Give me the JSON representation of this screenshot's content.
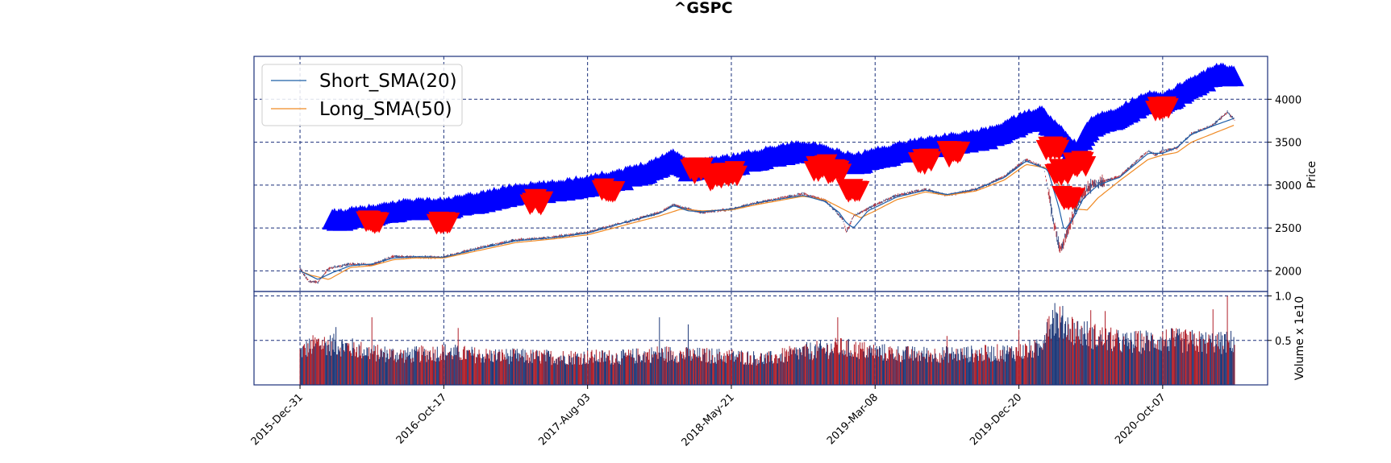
{
  "chart_data": {
    "type": "candlestick",
    "title": "^GSPC",
    "price_axis": {
      "label": "Price",
      "ticks": [
        2000,
        2500,
        3000,
        3500,
        4000
      ],
      "ylim": [
        1760,
        4500
      ]
    },
    "volume_axis": {
      "label": "Volume x 1e10",
      "ticks": [
        0.5,
        1.0
      ],
      "tick_labels": [
        "0.5",
        "1.0"
      ],
      "ylim": [
        0,
        1.05
      ]
    },
    "x_axis": {
      "tick_labels": [
        "2015-Dec-31",
        "2016-Oct-17",
        "2017-Aug-03",
        "2018-May-21",
        "2019-Mar-08",
        "2019-Dec-20",
        "2020-Oct-07"
      ],
      "tick_positions": [
        0,
        200,
        400,
        600,
        800,
        1000,
        1200
      ],
      "xlim": [
        -64,
        1346
      ]
    },
    "grid": true,
    "legend": {
      "position": "upper-left",
      "entries": [
        {
          "label": "Short_SMA(20)",
          "color": "#1f5fa8"
        },
        {
          "label": "Long_SMA(50)",
          "color": "#f08a24"
        }
      ]
    },
    "colors": {
      "axes_border": "#1a2f7a",
      "grid": "#1a2f7a",
      "candle_up": "#1f3a7a",
      "candle_down": "#b0202a",
      "buy_marker": "#0000ff",
      "sell_marker": "#ff0000",
      "short_sma": "#1f5fa8",
      "long_sma": "#f08a24"
    },
    "price_path": [
      [
        0,
        2030
      ],
      [
        12,
        1880
      ],
      [
        25,
        1870
      ],
      [
        40,
        2030
      ],
      [
        70,
        2080
      ],
      [
        100,
        2070
      ],
      [
        130,
        2170
      ],
      [
        160,
        2160
      ],
      [
        200,
        2160
      ],
      [
        250,
        2270
      ],
      [
        300,
        2360
      ],
      [
        350,
        2390
      ],
      [
        400,
        2450
      ],
      [
        450,
        2560
      ],
      [
        500,
        2680
      ],
      [
        520,
        2770
      ],
      [
        535,
        2730
      ],
      [
        560,
        2680
      ],
      [
        600,
        2720
      ],
      [
        640,
        2800
      ],
      [
        700,
        2900
      ],
      [
        730,
        2820
      ],
      [
        745,
        2700
      ],
      [
        755,
        2600
      ],
      [
        760,
        2450
      ],
      [
        770,
        2640
      ],
      [
        800,
        2770
      ],
      [
        830,
        2880
      ],
      [
        870,
        2950
      ],
      [
        900,
        2880
      ],
      [
        940,
        2950
      ],
      [
        980,
        3100
      ],
      [
        1010,
        3300
      ],
      [
        1035,
        3200
      ],
      [
        1050,
        2500
      ],
      [
        1058,
        2240
      ],
      [
        1070,
        2500
      ],
      [
        1080,
        2750
      ],
      [
        1100,
        3000
      ],
      [
        1140,
        3100
      ],
      [
        1180,
        3400
      ],
      [
        1190,
        3350
      ],
      [
        1200,
        3400
      ],
      [
        1220,
        3430
      ],
      [
        1240,
        3600
      ],
      [
        1270,
        3700
      ],
      [
        1290,
        3850
      ],
      [
        1300,
        3760
      ]
    ],
    "short_sma_path": [
      [
        0,
        2000
      ],
      [
        25,
        1900
      ],
      [
        45,
        1980
      ],
      [
        70,
        2060
      ],
      [
        100,
        2080
      ],
      [
        130,
        2150
      ],
      [
        160,
        2165
      ],
      [
        200,
        2160
      ],
      [
        250,
        2260
      ],
      [
        300,
        2350
      ],
      [
        350,
        2385
      ],
      [
        400,
        2440
      ],
      [
        450,
        2560
      ],
      [
        500,
        2670
      ],
      [
        520,
        2760
      ],
      [
        540,
        2700
      ],
      [
        560,
        2690
      ],
      [
        600,
        2720
      ],
      [
        640,
        2800
      ],
      [
        700,
        2880
      ],
      [
        730,
        2810
      ],
      [
        750,
        2680
      ],
      [
        760,
        2560
      ],
      [
        770,
        2500
      ],
      [
        790,
        2700
      ],
      [
        830,
        2860
      ],
      [
        870,
        2940
      ],
      [
        900,
        2890
      ],
      [
        940,
        2950
      ],
      [
        980,
        3090
      ],
      [
        1010,
        3280
      ],
      [
        1040,
        3180
      ],
      [
        1055,
        2760
      ],
      [
        1063,
        2470
      ],
      [
        1075,
        2600
      ],
      [
        1090,
        2850
      ],
      [
        1110,
        3000
      ],
      [
        1140,
        3090
      ],
      [
        1180,
        3370
      ],
      [
        1200,
        3370
      ],
      [
        1220,
        3440
      ],
      [
        1240,
        3590
      ],
      [
        1270,
        3690
      ],
      [
        1300,
        3780
      ]
    ],
    "long_sma_path": [
      [
        0,
        2000
      ],
      [
        15,
        1950
      ],
      [
        40,
        1900
      ],
      [
        70,
        2040
      ],
      [
        100,
        2060
      ],
      [
        130,
        2130
      ],
      [
        160,
        2150
      ],
      [
        200,
        2150
      ],
      [
        250,
        2240
      ],
      [
        300,
        2330
      ],
      [
        350,
        2370
      ],
      [
        400,
        2420
      ],
      [
        450,
        2530
      ],
      [
        500,
        2640
      ],
      [
        530,
        2720
      ],
      [
        560,
        2700
      ],
      [
        600,
        2710
      ],
      [
        640,
        2780
      ],
      [
        700,
        2870
      ],
      [
        730,
        2830
      ],
      [
        760,
        2700
      ],
      [
        780,
        2620
      ],
      [
        800,
        2700
      ],
      [
        830,
        2830
      ],
      [
        870,
        2920
      ],
      [
        900,
        2880
      ],
      [
        940,
        2930
      ],
      [
        980,
        3060
      ],
      [
        1010,
        3240
      ],
      [
        1040,
        3200
      ],
      [
        1058,
        2980
      ],
      [
        1068,
        2820
      ],
      [
        1080,
        2720
      ],
      [
        1095,
        2710
      ],
      [
        1110,
        2850
      ],
      [
        1140,
        3050
      ],
      [
        1180,
        3300
      ],
      [
        1200,
        3350
      ],
      [
        1220,
        3380
      ],
      [
        1240,
        3500
      ],
      [
        1270,
        3600
      ],
      [
        1300,
        3700
      ]
    ],
    "buy_markers_path": [
      [
        45,
        2560
      ],
      [
        80,
        2600
      ],
      [
        110,
        2630
      ],
      [
        150,
        2700
      ],
      [
        200,
        2700
      ],
      [
        240,
        2760
      ],
      [
        300,
        2870
      ],
      [
        350,
        2900
      ],
      [
        400,
        2970
      ],
      [
        450,
        3050
      ],
      [
        490,
        3150
      ],
      [
        520,
        3280
      ],
      [
        540,
        3150
      ],
      [
        600,
        3210
      ],
      [
        650,
        3300
      ],
      [
        700,
        3380
      ],
      [
        770,
        3220
      ],
      [
        820,
        3330
      ],
      [
        870,
        3420
      ],
      [
        920,
        3470
      ],
      [
        960,
        3530
      ],
      [
        1000,
        3680
      ],
      [
        1030,
        3780
      ],
      [
        1080,
        3350
      ],
      [
        1100,
        3650
      ],
      [
        1140,
        3780
      ],
      [
        1180,
        3960
      ],
      [
        1200,
        3920
      ],
      [
        1240,
        4120
      ],
      [
        1280,
        4280
      ],
      [
        1300,
        4230
      ]
    ],
    "sell_markers": [
      [
        102,
        2600
      ],
      [
        200,
        2600
      ],
      [
        330,
        2830
      ],
      [
        430,
        2970
      ],
      [
        553,
        3190
      ],
      [
        578,
        3120
      ],
      [
        600,
        3170
      ],
      [
        725,
        3230
      ],
      [
        745,
        3170
      ],
      [
        770,
        2950
      ],
      [
        870,
        3300
      ],
      [
        910,
        3380
      ],
      [
        1048,
        3480
      ],
      [
        1060,
        3180
      ],
      [
        1070,
        2900
      ],
      [
        1085,
        3270
      ],
      [
        1200,
        3920
      ]
    ],
    "volume_profile": [
      [
        0,
        0.38
      ],
      [
        25,
        0.48
      ],
      [
        60,
        0.45
      ],
      [
        100,
        0.37
      ],
      [
        150,
        0.34
      ],
      [
        200,
        0.38
      ],
      [
        250,
        0.34
      ],
      [
        300,
        0.33
      ],
      [
        350,
        0.32
      ],
      [
        400,
        0.32
      ],
      [
        450,
        0.32
      ],
      [
        500,
        0.36
      ],
      [
        550,
        0.34
      ],
      [
        600,
        0.33
      ],
      [
        650,
        0.3
      ],
      [
        700,
        0.38
      ],
      [
        750,
        0.43
      ],
      [
        800,
        0.38
      ],
      [
        850,
        0.35
      ],
      [
        900,
        0.35
      ],
      [
        950,
        0.36
      ],
      [
        1000,
        0.38
      ],
      [
        1030,
        0.42
      ],
      [
        1040,
        0.75
      ],
      [
        1060,
        0.72
      ],
      [
        1080,
        0.62
      ],
      [
        1110,
        0.55
      ],
      [
        1150,
        0.48
      ],
      [
        1200,
        0.52
      ],
      [
        1240,
        0.5
      ],
      [
        1280,
        0.48
      ],
      [
        1300,
        0.5
      ]
    ],
    "volume_spikes": [
      [
        50,
        0.65
      ],
      [
        100,
        0.76
      ],
      [
        220,
        0.64
      ],
      [
        500,
        0.76
      ],
      [
        540,
        0.68
      ],
      [
        748,
        0.76
      ],
      [
        900,
        0.55
      ],
      [
        1000,
        0.62
      ],
      [
        1050,
        0.92
      ],
      [
        1100,
        0.84
      ],
      [
        1120,
        0.83
      ],
      [
        1270,
        0.85
      ],
      [
        1290,
        1.0
      ]
    ],
    "n_bars": 1300
  }
}
